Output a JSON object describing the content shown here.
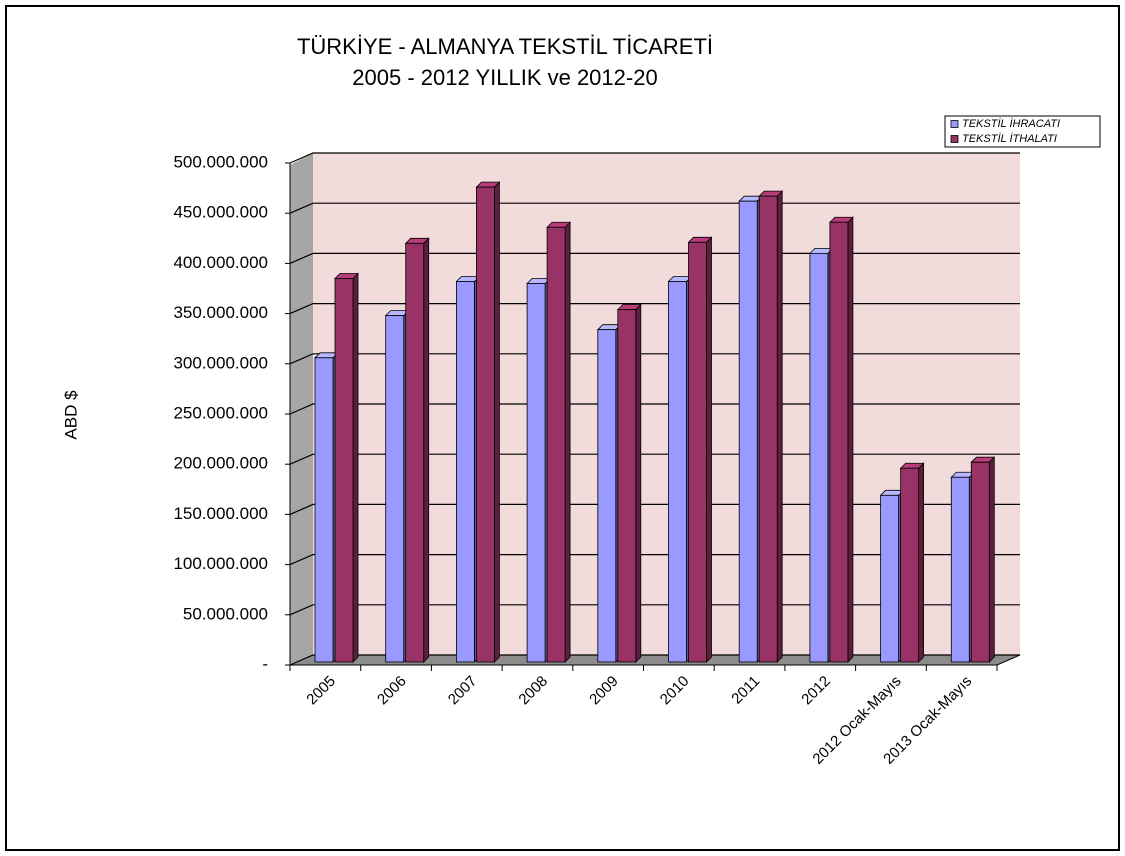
{
  "chart_data": {
    "type": "bar3d",
    "title": "TÜRKİYE - ALMANYA TEKSTİL TİCARETİ",
    "subtitle": "2005 - 2012 YILLIK ve 2012-20",
    "y_label": "ABD $",
    "categories": [
      "2005",
      "2006",
      "2007",
      "2008",
      "2009",
      "2010",
      "2011",
      "2012",
      "2012 Ocak-Mayıs",
      "2013 Ocak-Mayıs"
    ],
    "series": [
      {
        "name": "TEKSTİL İHRACATI",
        "color": "#9999ff",
        "values": [
          303000000,
          345000000,
          379000000,
          377000000,
          331000000,
          379000000,
          459000000,
          407000000,
          166000000,
          184000000
        ]
      },
      {
        "name": "TEKSTİL İTHALATI",
        "color": "#993366",
        "values": [
          382000000,
          417000000,
          473000000,
          433000000,
          351000000,
          418000000,
          464000000,
          438000000,
          193000000,
          199000000
        ]
      }
    ],
    "ylim": [
      0,
      500000000
    ],
    "yticks": [
      {
        "value": 0,
        "label": "-"
      },
      {
        "value": 50000000,
        "label": "50.000.000"
      },
      {
        "value": 100000000,
        "label": "100.000.000"
      },
      {
        "value": 150000000,
        "label": "150.000.000"
      },
      {
        "value": 200000000,
        "label": "200.000.000"
      },
      {
        "value": 250000000,
        "label": "250.000.000"
      },
      {
        "value": 300000000,
        "label": "300.000.000"
      },
      {
        "value": 350000000,
        "label": "350.000.000"
      },
      {
        "value": 400000000,
        "label": "400.000.000"
      },
      {
        "value": 450000000,
        "label": "450.000.000"
      },
      {
        "value": 500000000,
        "label": "500.000.000"
      }
    ],
    "grid": true,
    "legend": "top-right"
  }
}
